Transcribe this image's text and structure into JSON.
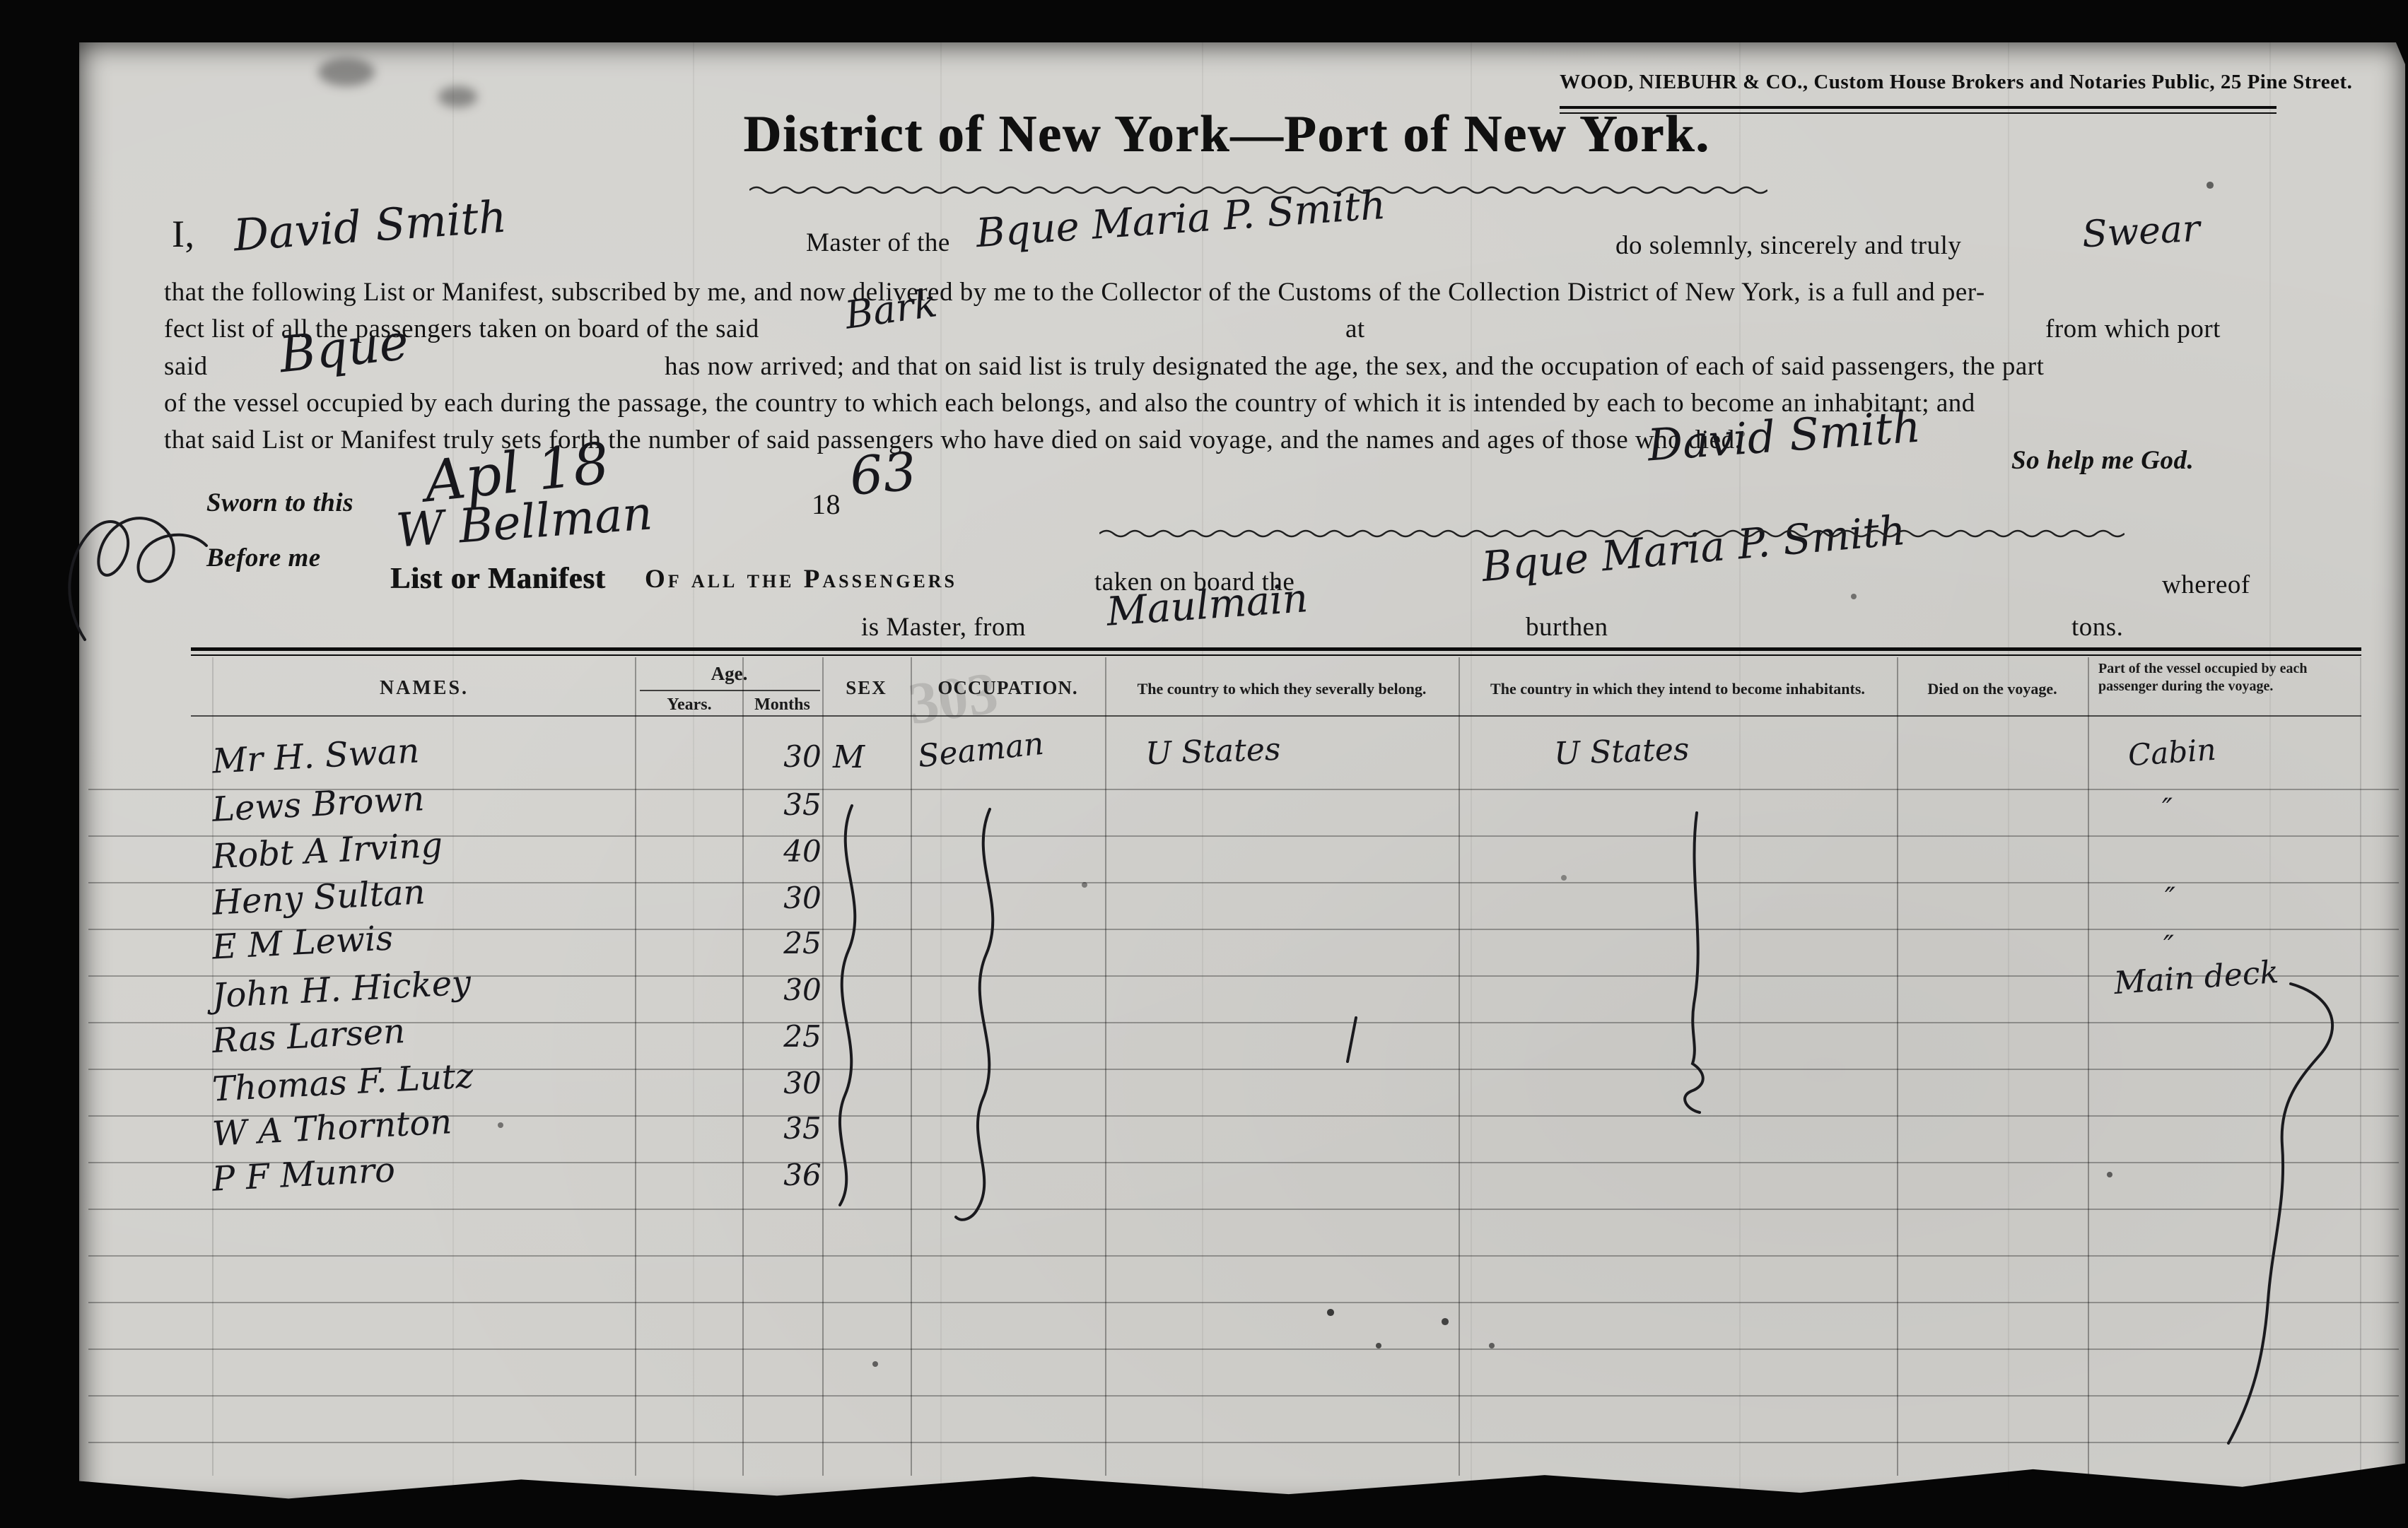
{
  "stamp": {
    "text": "WOOD, NIEBUHR & CO., Custom House Brokers and Notaries Public, 25 Pine Street."
  },
  "title": "District of New York—Port of New York.",
  "oath": {
    "i_comma": "I,",
    "master_name": "David Smith",
    "master_of_the": "Master of the",
    "vessel_name": "Bque Maria P. Smith",
    "do_solemnly": "do solemnly, sincerely and truly",
    "oath_word": "Swear",
    "line2": "that the following List or Manifest, subscribed by me, and now delivered by me to the Collector of the Customs of the Collection District of New York, is a full and per-",
    "line3": "fect list of all the passengers taken on board of the said",
    "vessel_type_1": "Bark",
    "at_word": "at",
    "from_which_port": "from which port",
    "said_word": "said",
    "vessel_type_2": "Bque",
    "line4": "has now arrived; and that on said list is truly designated the age, the sex, and the occupation of each of said passengers, the part",
    "line5": "of the vessel occupied by each during the passage, the country to which each belongs, and also the country of which it is intended by each to become an inhabitant; and",
    "line6": "that said List or Manifest truly sets forth the number of said passengers who have died on said voyage, and the names and ages of those who died.",
    "signature": "David Smith",
    "so_help_me_god": "So help me God."
  },
  "sworn": {
    "sworn_to_this": "Sworn to this",
    "date": "Apl 18",
    "year_prefix": "18",
    "year_hand": "63",
    "before_me": "Before me",
    "notary_signature": "W Bellman"
  },
  "manifest": {
    "list_or_manifest": "List or Manifest",
    "of_all_passengers": "Of all the Passengers",
    "taken_on_board": "taken on board the",
    "vessel_name": "Bque Maria P. Smith",
    "whereof": "whereof",
    "is_master_from": "is Master, from",
    "port": "Maulmain",
    "burthen": "burthen",
    "tons": "tons.",
    "stamp_number": "303"
  },
  "table": {
    "headers": {
      "names": "NAMES.",
      "age": "Age.",
      "years": "Years.",
      "months": "Months",
      "sex": "SEX",
      "occupation": "OCCUPATION.",
      "belong": "The country to which they severally belong.",
      "inhabitants": "The country in which they intend to become  inhabitants.",
      "died": "Died on the voyage.",
      "vessel_part": "Part of the vessel occupied by each passenger during the voyage."
    },
    "rows": [
      {
        "name": "Mr H. Swan",
        "years": "30",
        "sex": "M",
        "occupation": "Seaman",
        "belong": "U States",
        "inhabitants": "U States",
        "part": "Cabin"
      },
      {
        "name": "Lews Brown",
        "years": "35",
        "part": "″"
      },
      {
        "name": "Robt A Irving",
        "years": "40",
        "part": "″"
      },
      {
        "name": "Heny Sultan",
        "years": "30",
        "part": "″"
      },
      {
        "name": "E M Lewis",
        "years": "25",
        "part": "Main deck"
      },
      {
        "name": "John H. Hickey",
        "years": "30"
      },
      {
        "name": "Ras Larsen",
        "years": "25"
      },
      {
        "name": "Thomas F. Lutz",
        "years": "30"
      },
      {
        "name": "W A Thornton",
        "years": "35"
      },
      {
        "name": "P F Munro",
        "years": "36"
      }
    ]
  }
}
